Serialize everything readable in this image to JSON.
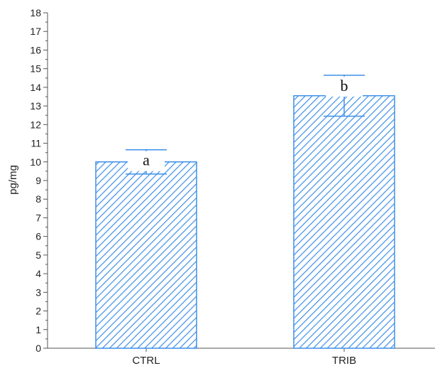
{
  "chart_data": {
    "type": "bar",
    "title": "",
    "xlabel": "",
    "ylabel": "pg/mg",
    "ylim": [
      0,
      18
    ],
    "yticks": [
      0,
      1,
      2,
      3,
      4,
      5,
      6,
      7,
      8,
      9,
      10,
      11,
      12,
      13,
      14,
      15,
      16,
      17,
      18
    ],
    "categories": [
      "CTRL",
      "TRIB"
    ],
    "values": [
      10.0,
      13.55
    ],
    "error_lower": [
      9.35,
      12.45
    ],
    "error_upper": [
      10.65,
      14.65
    ],
    "annotations": [
      "a",
      "b"
    ],
    "bar_fill": "hatched",
    "colors": {
      "bar": "#3d8fe8",
      "error": "#3d8fe8",
      "axis": "#555555"
    },
    "grid": false,
    "legend": "none"
  }
}
